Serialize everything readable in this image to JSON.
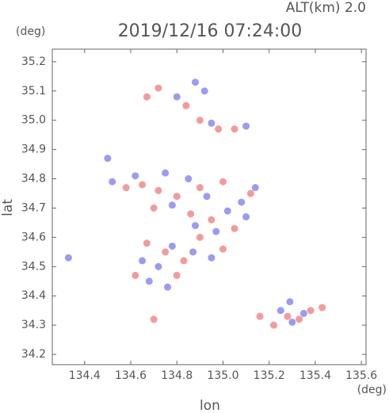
{
  "alt_label": "ALT(km)  2.0",
  "y_unit": "(deg)",
  "x_unit": "(deg)",
  "chart_data": {
    "type": "scatter",
    "title": "2019/12/16 07:24:00",
    "xlabel": "lon",
    "ylabel": "lat",
    "xlim": [
      134.26,
      135.62
    ],
    "ylim": [
      34.165,
      35.243
    ],
    "xticks": [
      134.4,
      134.6,
      134.8,
      {
        "value": 135,
        "label": "135.0"
      },
      135.2,
      135.4,
      135.6
    ],
    "yticks": [
      34.2,
      34.3,
      34.4,
      34.5,
      34.6,
      34.7,
      34.8,
      34.9,
      {
        "value": 35,
        "label": "35.0"
      },
      35.1,
      35.2
    ],
    "series": [
      {
        "color": "#f08a8a",
        "x": [
          134.72,
          134.67,
          134.84,
          134.9,
          134.98,
          135.05,
          134.58,
          134.65,
          134.72,
          134.8,
          134.9,
          135.0,
          135.12,
          134.7,
          134.86,
          134.95,
          135.05,
          134.67,
          134.75,
          134.83,
          134.9,
          134.62,
          134.8,
          135.0,
          135.22,
          135.28,
          135.33,
          135.38,
          135.43,
          134.7,
          135.16
        ],
        "values": [
          35.11,
          35.08,
          35.05,
          35.0,
          34.97,
          34.97,
          34.77,
          34.78,
          34.76,
          34.74,
          34.77,
          34.79,
          34.75,
          34.7,
          34.68,
          34.66,
          34.63,
          34.58,
          34.55,
          34.52,
          34.6,
          34.47,
          34.47,
          34.56,
          34.3,
          34.33,
          34.32,
          34.35,
          34.36,
          34.32,
          34.33
        ]
      },
      {
        "color": "#8a8af0",
        "x": [
          134.88,
          134.8,
          134.92,
          135.1,
          134.95,
          134.5,
          134.52,
          134.62,
          134.75,
          134.85,
          134.93,
          135.08,
          135.14,
          134.78,
          135.02,
          135.1,
          134.88,
          134.97,
          134.65,
          134.72,
          134.78,
          134.87,
          134.95,
          134.76,
          134.33,
          135.25,
          135.3,
          135.35,
          135.29,
          134.68
        ],
        "values": [
          35.13,
          35.08,
          35.1,
          34.98,
          34.99,
          34.87,
          34.79,
          34.81,
          34.82,
          34.8,
          34.74,
          34.72,
          34.77,
          34.71,
          34.69,
          34.67,
          34.64,
          34.62,
          34.52,
          34.5,
          34.57,
          34.55,
          34.53,
          34.43,
          34.53,
          34.35,
          34.31,
          34.34,
          34.38,
          34.45
        ]
      }
    ]
  }
}
